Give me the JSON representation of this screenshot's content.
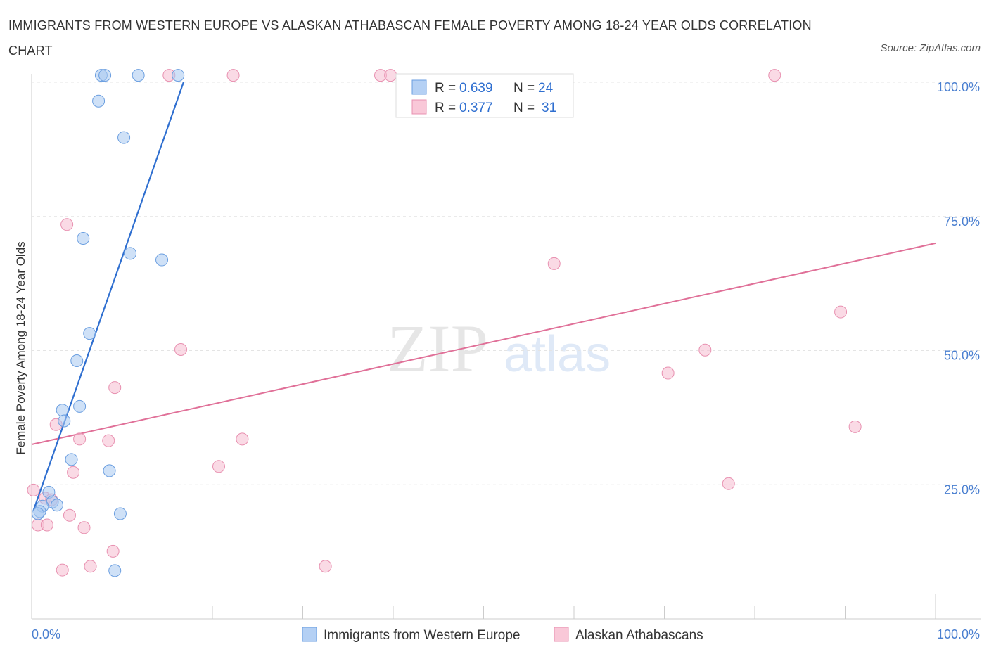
{
  "header": {
    "title": "IMMIGRANTS FROM WESTERN EUROPE VS ALASKAN ATHABASCAN FEMALE POVERTY AMONG 18-24 YEAR OLDS CORRELATION CHART",
    "source": "Source: ZipAtlas.com"
  },
  "watermark": {
    "zip": "ZIP",
    "atlas": "atlas"
  },
  "colors": {
    "blue_fill": "#a8c8f0",
    "blue_stroke": "#6a9ee0",
    "blue_line": "#2f6fd0",
    "pink_fill": "#f6bcd0",
    "pink_stroke": "#e890b0",
    "pink_line": "#e07098"
  },
  "legend": {
    "rows": [
      {
        "r_label": "R =",
        "r_value": "0.639",
        "n_label": "N =",
        "n_value": "24"
      },
      {
        "r_label": "R =",
        "r_value": "0.377",
        "n_label": "N =",
        "n_value": "31"
      }
    ]
  },
  "chart_data": {
    "type": "scatter",
    "title": "IMMIGRANTS FROM WESTERN EUROPE VS ALASKAN ATHABASCAN FEMALE POVERTY AMONG 18-24 YEAR OLDS CORRELATION CHART",
    "xlabel": "",
    "ylabel": "Female Poverty Among 18-24 Year Olds",
    "xlim": [
      0,
      100
    ],
    "ylim": [
      0,
      105
    ],
    "x_tick_labels": [
      "0.0%",
      "100.0%"
    ],
    "y_ticks": [
      25,
      50,
      75,
      100
    ],
    "y_tick_labels": [
      "25.0%",
      "50.0%",
      "75.0%",
      "100.0%"
    ],
    "grid": true,
    "series": [
      {
        "name": "Immigrants from Western Europe",
        "color": "blue",
        "r": 0.639,
        "n": 24,
        "trend": {
          "x0": 0.2,
          "y0": 20.2,
          "x1": 16.8,
          "y1": 100
        },
        "points": [
          [
            7.7,
            101.3
          ],
          [
            8.1,
            101.3
          ],
          [
            11.8,
            101.3
          ],
          [
            16.2,
            101.3
          ],
          [
            7.4,
            96.5
          ],
          [
            10.2,
            89.7
          ],
          [
            5.7,
            70.9
          ],
          [
            10.9,
            68.1
          ],
          [
            14.4,
            66.9
          ],
          [
            6.4,
            53.2
          ],
          [
            5.0,
            48.1
          ],
          [
            3.4,
            38.9
          ],
          [
            5.3,
            39.6
          ],
          [
            3.6,
            36.9
          ],
          [
            4.4,
            29.7
          ],
          [
            8.6,
            27.6
          ],
          [
            1.9,
            23.6
          ],
          [
            2.3,
            21.8
          ],
          [
            2.8,
            21.2
          ],
          [
            1.2,
            21.0
          ],
          [
            0.9,
            20.0
          ],
          [
            0.7,
            19.6
          ],
          [
            9.8,
            19.6
          ],
          [
            9.2,
            9.0
          ]
        ]
      },
      {
        "name": "Alaskan Athabascans",
        "color": "pink",
        "r": 0.377,
        "n": 31,
        "trend": {
          "x0": 0,
          "y0": 32.5,
          "x1": 100,
          "y1": 70
        },
        "points": [
          [
            15.2,
            101.3
          ],
          [
            22.3,
            101.3
          ],
          [
            38.6,
            101.3
          ],
          [
            39.7,
            101.3
          ],
          [
            82.2,
            101.3
          ],
          [
            3.9,
            73.5
          ],
          [
            57.8,
            66.2
          ],
          [
            89.5,
            57.2
          ],
          [
            16.5,
            50.2
          ],
          [
            74.5,
            50.1
          ],
          [
            70.4,
            45.8
          ],
          [
            9.2,
            43.1
          ],
          [
            2.7,
            36.2
          ],
          [
            91.1,
            35.8
          ],
          [
            5.3,
            33.5
          ],
          [
            8.5,
            33.2
          ],
          [
            23.3,
            33.5
          ],
          [
            20.7,
            28.4
          ],
          [
            4.6,
            27.3
          ],
          [
            77.1,
            25.2
          ],
          [
            0.2,
            24.0
          ],
          [
            1.5,
            22.5
          ],
          [
            2.2,
            22.2
          ],
          [
            4.2,
            19.3
          ],
          [
            0.7,
            17.5
          ],
          [
            1.7,
            17.5
          ],
          [
            5.8,
            17.0
          ],
          [
            9.0,
            12.6
          ],
          [
            6.5,
            9.8
          ],
          [
            32.5,
            9.8
          ],
          [
            3.4,
            9.1
          ]
        ]
      }
    ]
  }
}
